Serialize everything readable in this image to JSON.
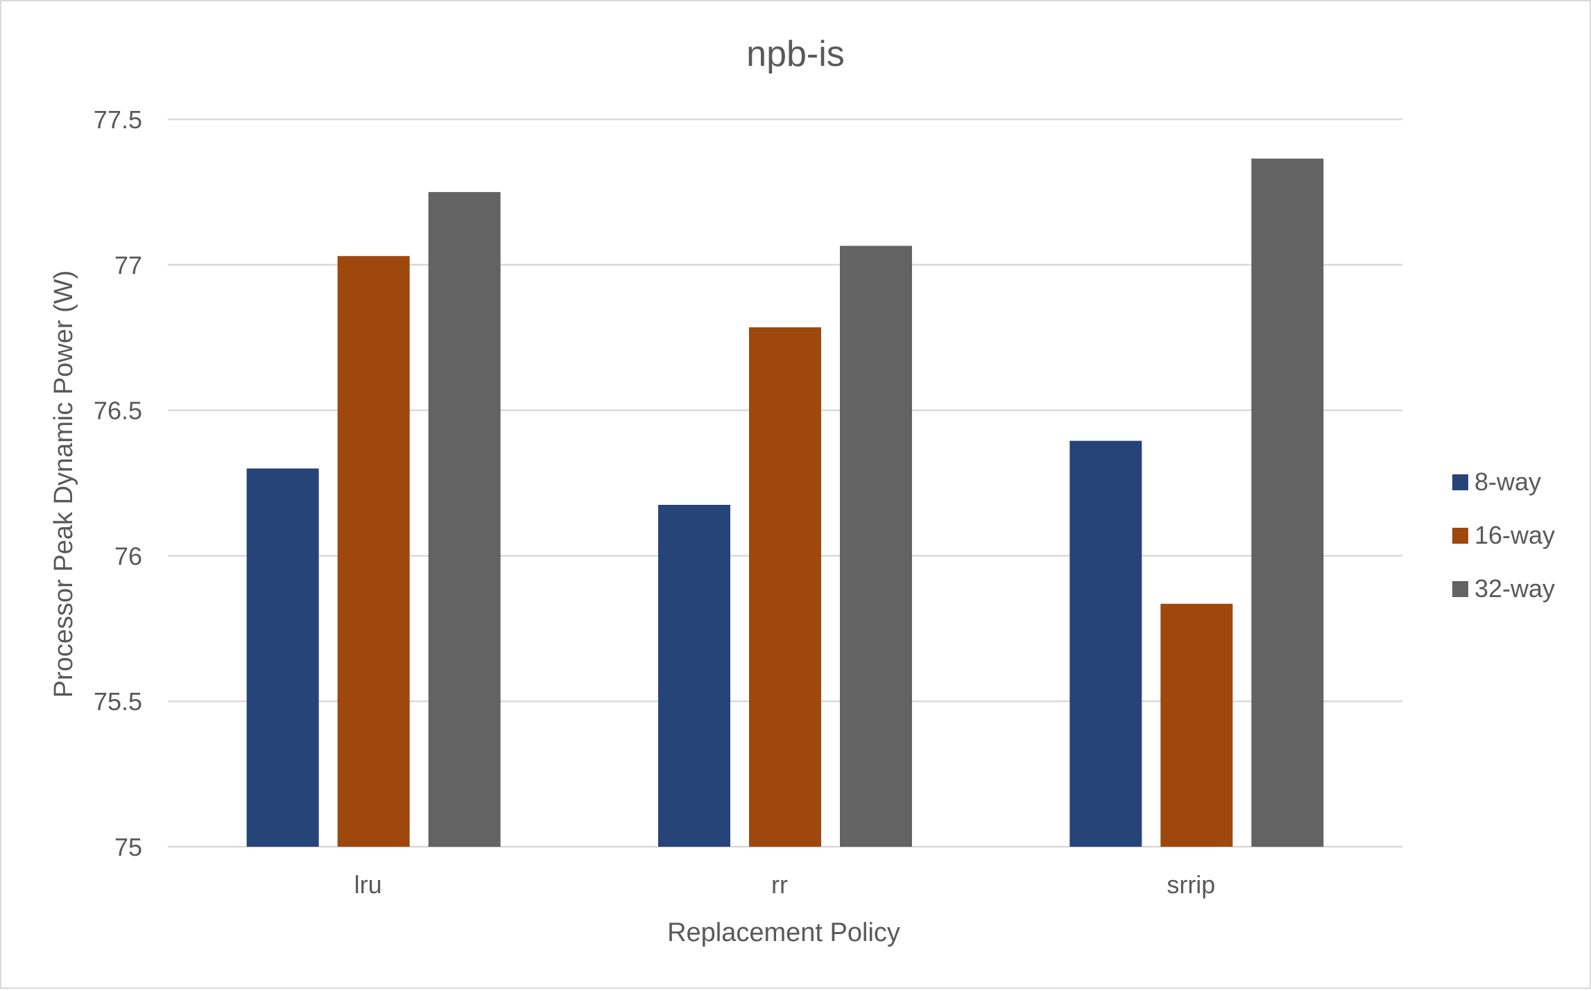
{
  "chart_data": {
    "type": "bar",
    "title": "npb-is",
    "xlabel": "Replacement Policy",
    "ylabel": "Processor Peak Dynamic Power (W)",
    "categories": [
      "lru",
      "rr",
      "srrip"
    ],
    "series": [
      {
        "name": "8-way",
        "color": "#264478",
        "values": [
          76.3,
          76.175,
          76.395
        ]
      },
      {
        "name": "16-way",
        "color": "#9e480e",
        "values": [
          77.03,
          76.785,
          75.835
        ]
      },
      {
        "name": "32-way",
        "color": "#636363",
        "values": [
          77.25,
          77.065,
          77.365
        ]
      }
    ],
    "ylim": [
      75,
      77.5
    ],
    "yticks": [
      75,
      75.5,
      76,
      76.5,
      77,
      77.5
    ],
    "ytick_labels": [
      "75",
      "75.5",
      "76",
      "76.5",
      "77",
      "77.5"
    ],
    "grid": true,
    "legend": "right"
  }
}
